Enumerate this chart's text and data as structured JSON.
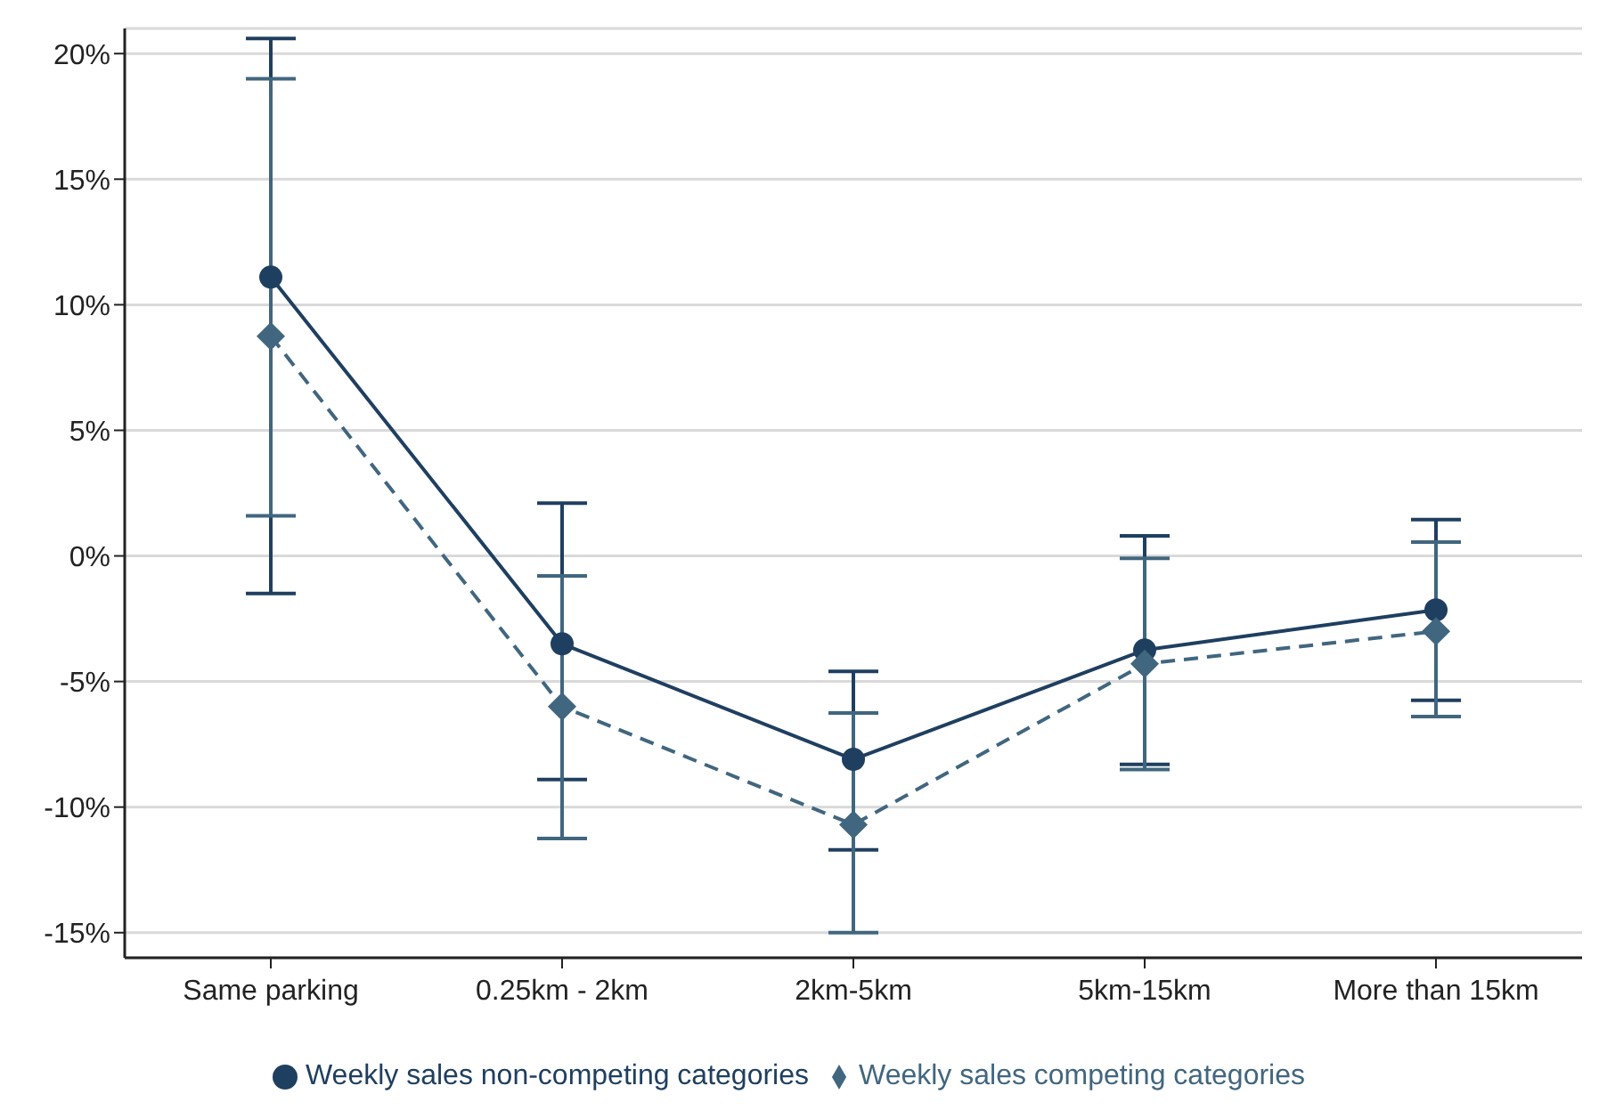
{
  "chart_data": {
    "type": "line",
    "categories": [
      "Same parking",
      "0.25km - 2km",
      "2km-5km",
      "5km-15km",
      "More than 15km"
    ],
    "series": [
      {
        "name": "Weekly sales non-competing categories",
        "color": "#1f3f60",
        "marker": "circle",
        "line_style": "solid",
        "values": [
          11.1,
          -3.5,
          -8.1,
          -3.75,
          -2.15
        ],
        "errors": [
          [
            -1.5,
            20.6
          ],
          [
            -8.9,
            2.1
          ],
          [
            -11.7,
            -4.6
          ],
          [
            -8.3,
            0.8
          ],
          [
            -5.75,
            1.45
          ]
        ]
      },
      {
        "name": "Weekly sales competing categories",
        "color": "#41667f",
        "marker": "diamond",
        "line_style": "dashed",
        "values": [
          8.75,
          -6.0,
          -10.7,
          -4.3,
          -3.0
        ],
        "errors": [
          [
            1.6,
            19.0
          ],
          [
            -11.25,
            -0.8
          ],
          [
            -15.0,
            -6.25
          ],
          [
            -8.5,
            -0.1
          ],
          [
            -6.4,
            0.55
          ]
        ]
      }
    ],
    "ylim": [
      -16,
      21
    ],
    "yticks": [
      {
        "value": -15,
        "label": "-15%"
      },
      {
        "value": -10,
        "label": "-10%"
      },
      {
        "value": -5,
        "label": "-5%"
      },
      {
        "value": 0,
        "label": "0%"
      },
      {
        "value": 5,
        "label": "5%"
      },
      {
        "value": 10,
        "label": "10%"
      },
      {
        "value": 15,
        "label": "15%"
      },
      {
        "value": 20,
        "label": "20%"
      }
    ],
    "grid": "y",
    "legend": "bottom"
  }
}
